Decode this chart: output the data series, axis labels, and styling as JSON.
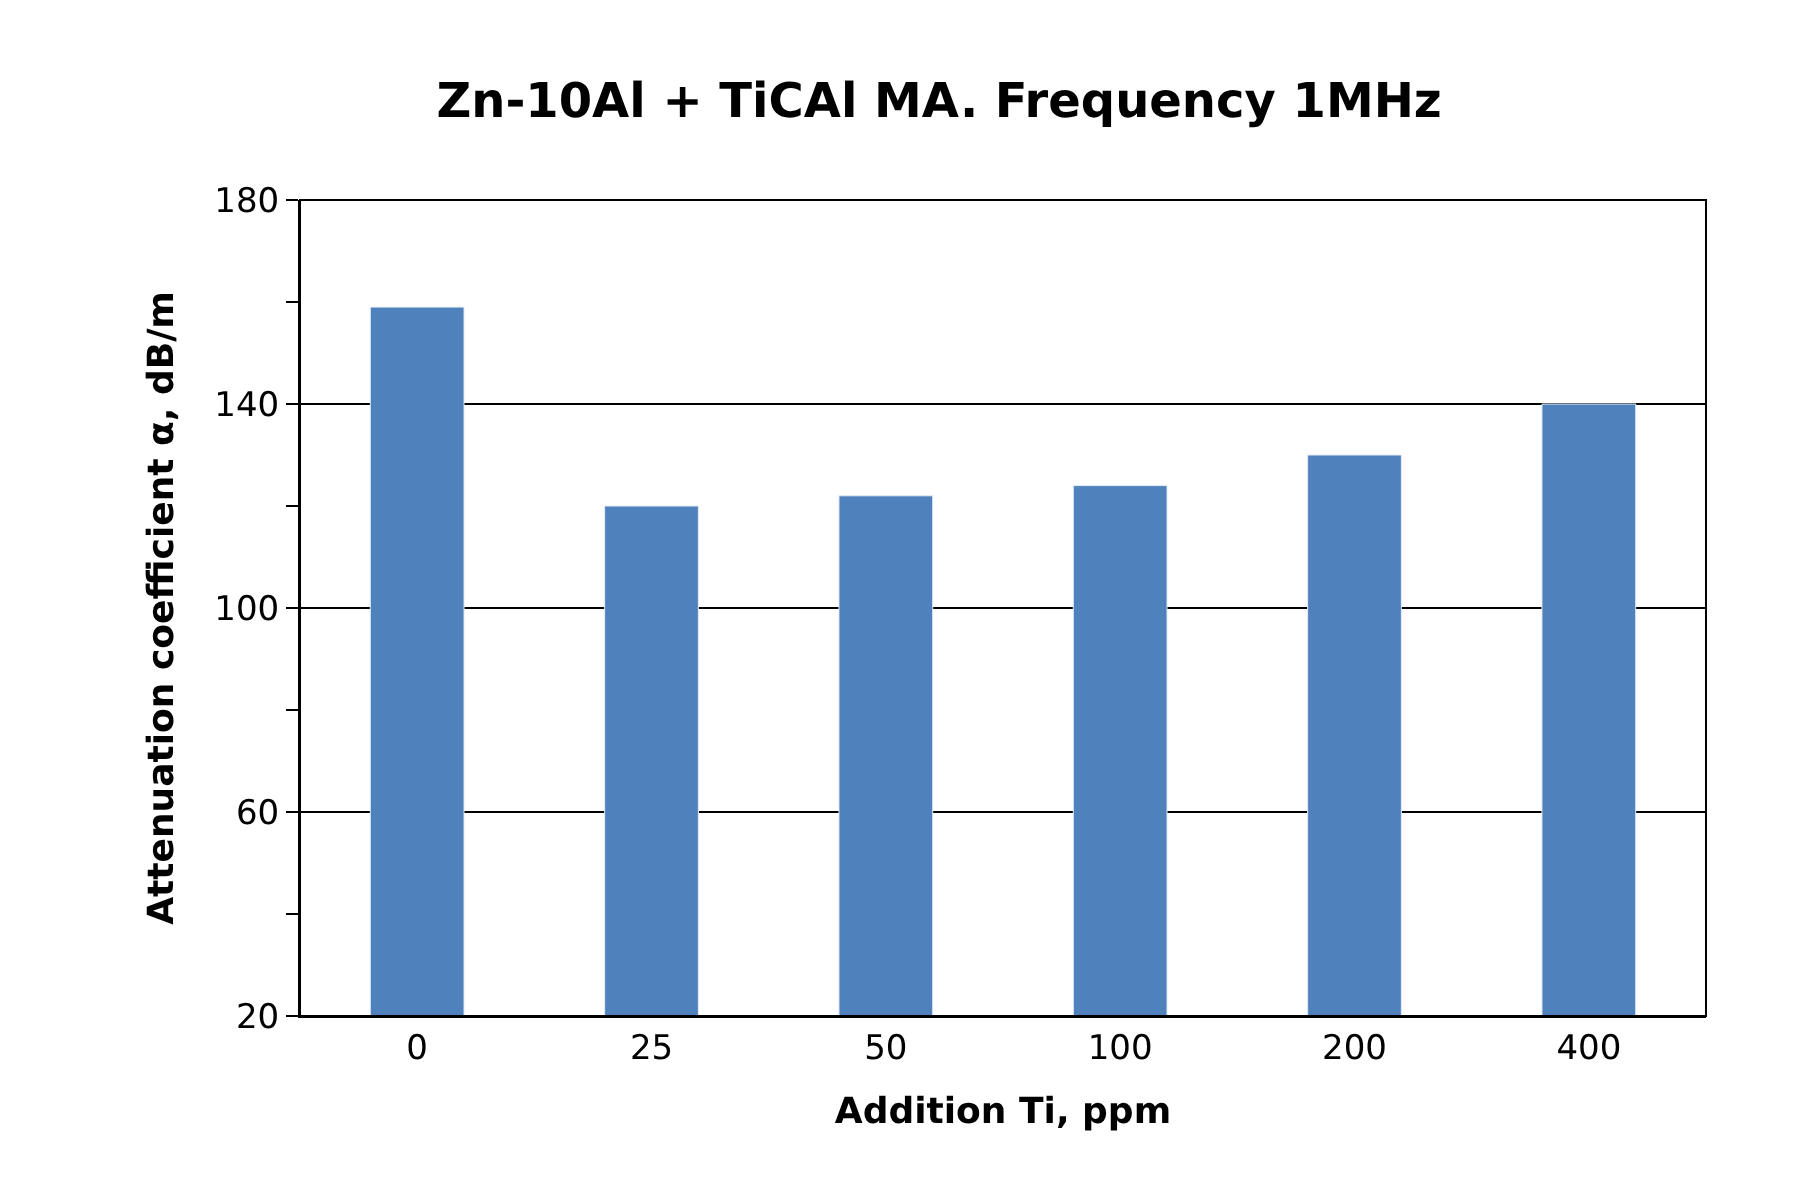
{
  "chart_data": {
    "type": "bar",
    "title": "Zn-10Al + TiCAl MA. Frequency 1MHz",
    "xlabel": "Addition Ti, ppm",
    "ylabel": "Attenuation coefficient α, dB/m",
    "categories": [
      "0",
      "25",
      "50",
      "100",
      "200",
      "400"
    ],
    "values": [
      159,
      120,
      122,
      124,
      130,
      140
    ],
    "color": "#4f81bd",
    "ylim": [
      20,
      180
    ],
    "yticks": [
      20,
      {
        "value": 40,
        "label": null
      },
      60,
      {
        "value": 80,
        "label": null
      },
      100,
      {
        "value": 120,
        "label": null
      },
      140,
      {
        "value": 160,
        "label": null
      },
      180
    ],
    "grid": "y"
  }
}
